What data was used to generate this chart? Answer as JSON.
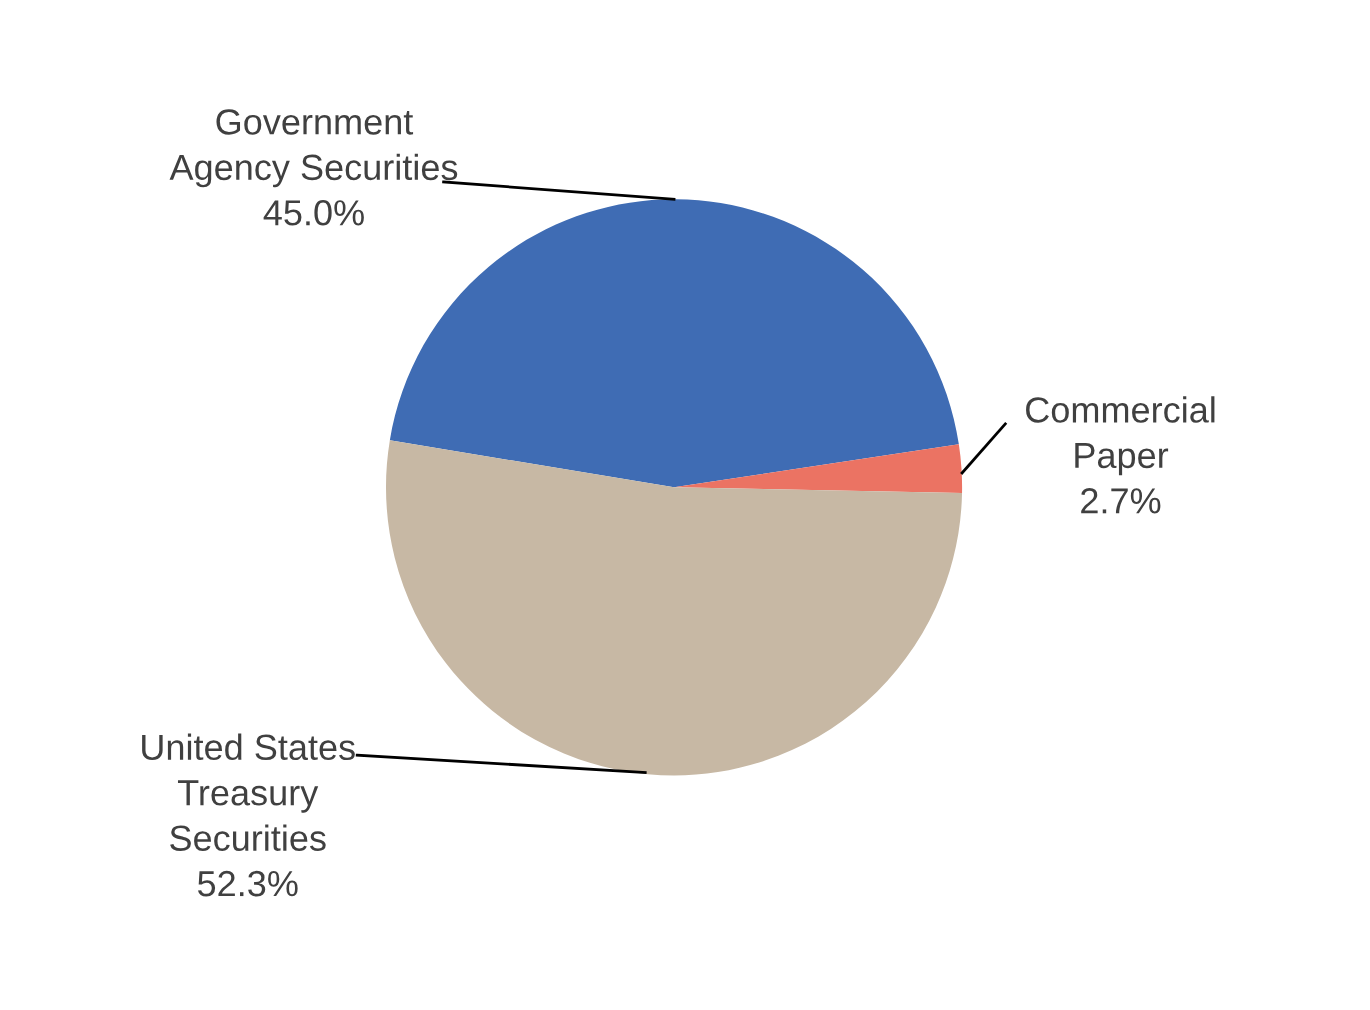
{
  "chart_data": {
    "type": "pie",
    "categories": [
      "Government\nAgency Securities",
      "Commercial\nPaper",
      "United States\nTreasury\nSecurities"
    ],
    "values": [
      45.0,
      2.7,
      52.3
    ],
    "colors": [
      "#3f6cb4",
      "#eb7363",
      "#c7b8a4"
    ],
    "value_labels": [
      "45.0%",
      "2.7%",
      "52.3%"
    ]
  }
}
